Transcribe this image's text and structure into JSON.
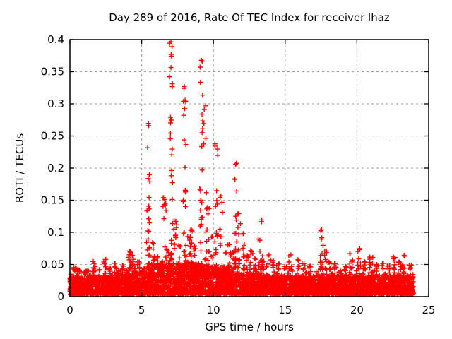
{
  "figure": {
    "background": "#ffffff",
    "border_color": "#000000",
    "grid_color": "#9a9a9a",
    "text_color": "#000000"
  },
  "chart_data": {
    "type": "scatter",
    "title": "Day 289 of 2016, Rate Of TEC Index for receiver lhaz",
    "xlabel": "GPS time / hours",
    "ylabel": "ROTI / TECUs",
    "xlim": [
      0,
      25
    ],
    "ylim": [
      0,
      0.4
    ],
    "xticks": [
      "0",
      "5",
      "10",
      "15",
      "20",
      "25"
    ],
    "yticks": [
      "0",
      "0.05",
      "0.1",
      "0.15",
      "0.2",
      "0.25",
      "0.3",
      "0.35",
      "0.4"
    ],
    "grid": true,
    "grid_style": "dashed",
    "legend_position": "none",
    "marker": {
      "shape": "plus",
      "color": "#ff0000",
      "size": 7
    },
    "series_name": "ROTI",
    "data_time_span_hours": [
      0,
      24
    ],
    "baseline_band": {
      "description": "dense noise band of ROTI values covering 0-24 h",
      "t_start": 0,
      "t_end": 23.95,
      "y_min": 0.003,
      "y_typical_top": 0.032,
      "y_fuzz_top": 0.05,
      "n_points": 4600,
      "midday_envelope_center_h": 8.2,
      "midday_envelope_width_h": 3.0,
      "midday_envelope_gain": 0.8
    },
    "spike_clusters_t_max_n": [
      [
        0.35,
        0.046,
        10
      ],
      [
        0.65,
        0.04,
        6
      ],
      [
        1.1,
        0.038,
        5
      ],
      [
        1.65,
        0.056,
        7
      ],
      [
        2.1,
        0.042,
        5
      ],
      [
        2.45,
        0.058,
        7
      ],
      [
        2.8,
        0.045,
        5
      ],
      [
        3.2,
        0.052,
        6
      ],
      [
        3.7,
        0.048,
        5
      ],
      [
        4.15,
        0.072,
        12
      ],
      [
        4.45,
        0.065,
        9
      ],
      [
        4.8,
        0.055,
        6
      ],
      [
        5.45,
        0.27,
        26
      ],
      [
        5.8,
        0.085,
        14
      ],
      [
        6.05,
        0.062,
        8
      ],
      [
        6.35,
        0.055,
        6
      ],
      [
        6.6,
        0.155,
        14
      ],
      [
        6.8,
        0.075,
        8
      ],
      [
        7.05,
        0.4,
        34
      ],
      [
        7.35,
        0.12,
        12
      ],
      [
        7.6,
        0.08,
        8
      ],
      [
        8.0,
        0.335,
        26
      ],
      [
        8.3,
        0.095,
        10
      ],
      [
        8.45,
        0.105,
        12
      ],
      [
        8.7,
        0.08,
        10
      ],
      [
        9.15,
        0.375,
        30
      ],
      [
        9.4,
        0.3,
        10
      ],
      [
        9.6,
        0.14,
        12
      ],
      [
        9.9,
        0.095,
        8
      ],
      [
        10.2,
        0.24,
        18
      ],
      [
        10.55,
        0.16,
        12
      ],
      [
        10.8,
        0.07,
        6
      ],
      [
        11.05,
        0.082,
        10
      ],
      [
        11.3,
        0.07,
        8
      ],
      [
        11.55,
        0.21,
        24
      ],
      [
        11.8,
        0.13,
        10
      ],
      [
        12.1,
        0.1,
        10
      ],
      [
        12.35,
        0.065,
        6
      ],
      [
        12.65,
        0.072,
        8
      ],
      [
        12.9,
        0.06,
        6
      ],
      [
        13.2,
        0.09,
        8
      ],
      [
        13.45,
        0.12,
        12
      ],
      [
        13.8,
        0.065,
        6
      ],
      [
        14.1,
        0.058,
        6
      ],
      [
        14.5,
        0.052,
        5
      ],
      [
        15.0,
        0.048,
        5
      ],
      [
        15.35,
        0.065,
        8
      ],
      [
        15.9,
        0.058,
        6
      ],
      [
        16.3,
        0.052,
        5
      ],
      [
        16.7,
        0.048,
        5
      ],
      [
        17.55,
        0.105,
        16
      ],
      [
        17.8,
        0.072,
        8
      ],
      [
        18.1,
        0.055,
        6
      ],
      [
        18.5,
        0.052,
        5
      ],
      [
        19.2,
        0.048,
        5
      ],
      [
        19.6,
        0.068,
        8
      ],
      [
        20.15,
        0.075,
        10
      ],
      [
        20.5,
        0.055,
        6
      ],
      [
        21.0,
        0.062,
        8
      ],
      [
        21.4,
        0.05,
        5
      ],
      [
        21.8,
        0.052,
        6
      ],
      [
        22.2,
        0.048,
        5
      ],
      [
        22.6,
        0.062,
        8
      ],
      [
        23.0,
        0.055,
        6
      ],
      [
        23.25,
        0.065,
        8
      ],
      [
        23.7,
        0.05,
        6
      ]
    ],
    "notable_peaks_t_y": [
      [
        7.05,
        0.4
      ],
      [
        9.15,
        0.375
      ],
      [
        8.0,
        0.335
      ],
      [
        5.45,
        0.27
      ],
      [
        10.2,
        0.24
      ],
      [
        11.55,
        0.21
      ],
      [
        6.6,
        0.155
      ],
      [
        17.55,
        0.105
      ]
    ]
  }
}
